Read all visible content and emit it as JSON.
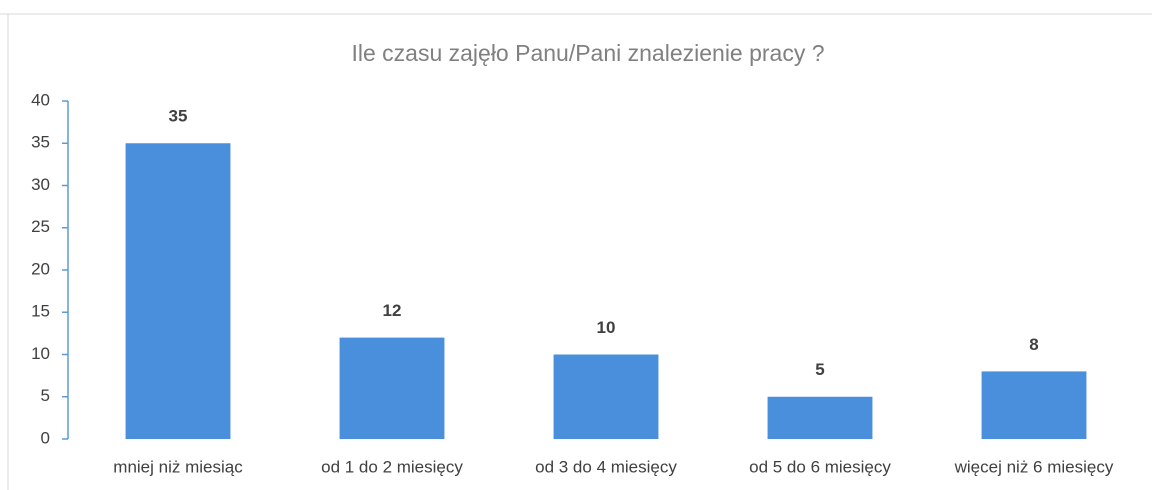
{
  "chart_data": {
    "type": "bar",
    "title": "Ile czasu zajęło Panu/Pani znalezienie pracy ?",
    "categories": [
      "mniej niż miesiąc",
      "od 1 do 2 miesięcy",
      "od 3 do 4 miesięcy",
      "od 5 do 6 miesięcy",
      "więcej niż 6 miesięcy"
    ],
    "values": [
      35,
      12,
      10,
      5,
      8
    ],
    "color": "#4a8fdc",
    "ylim": [
      0,
      40
    ],
    "yticks": [
      0,
      5,
      10,
      15,
      20,
      25,
      30,
      35,
      40
    ],
    "grid": false
  }
}
